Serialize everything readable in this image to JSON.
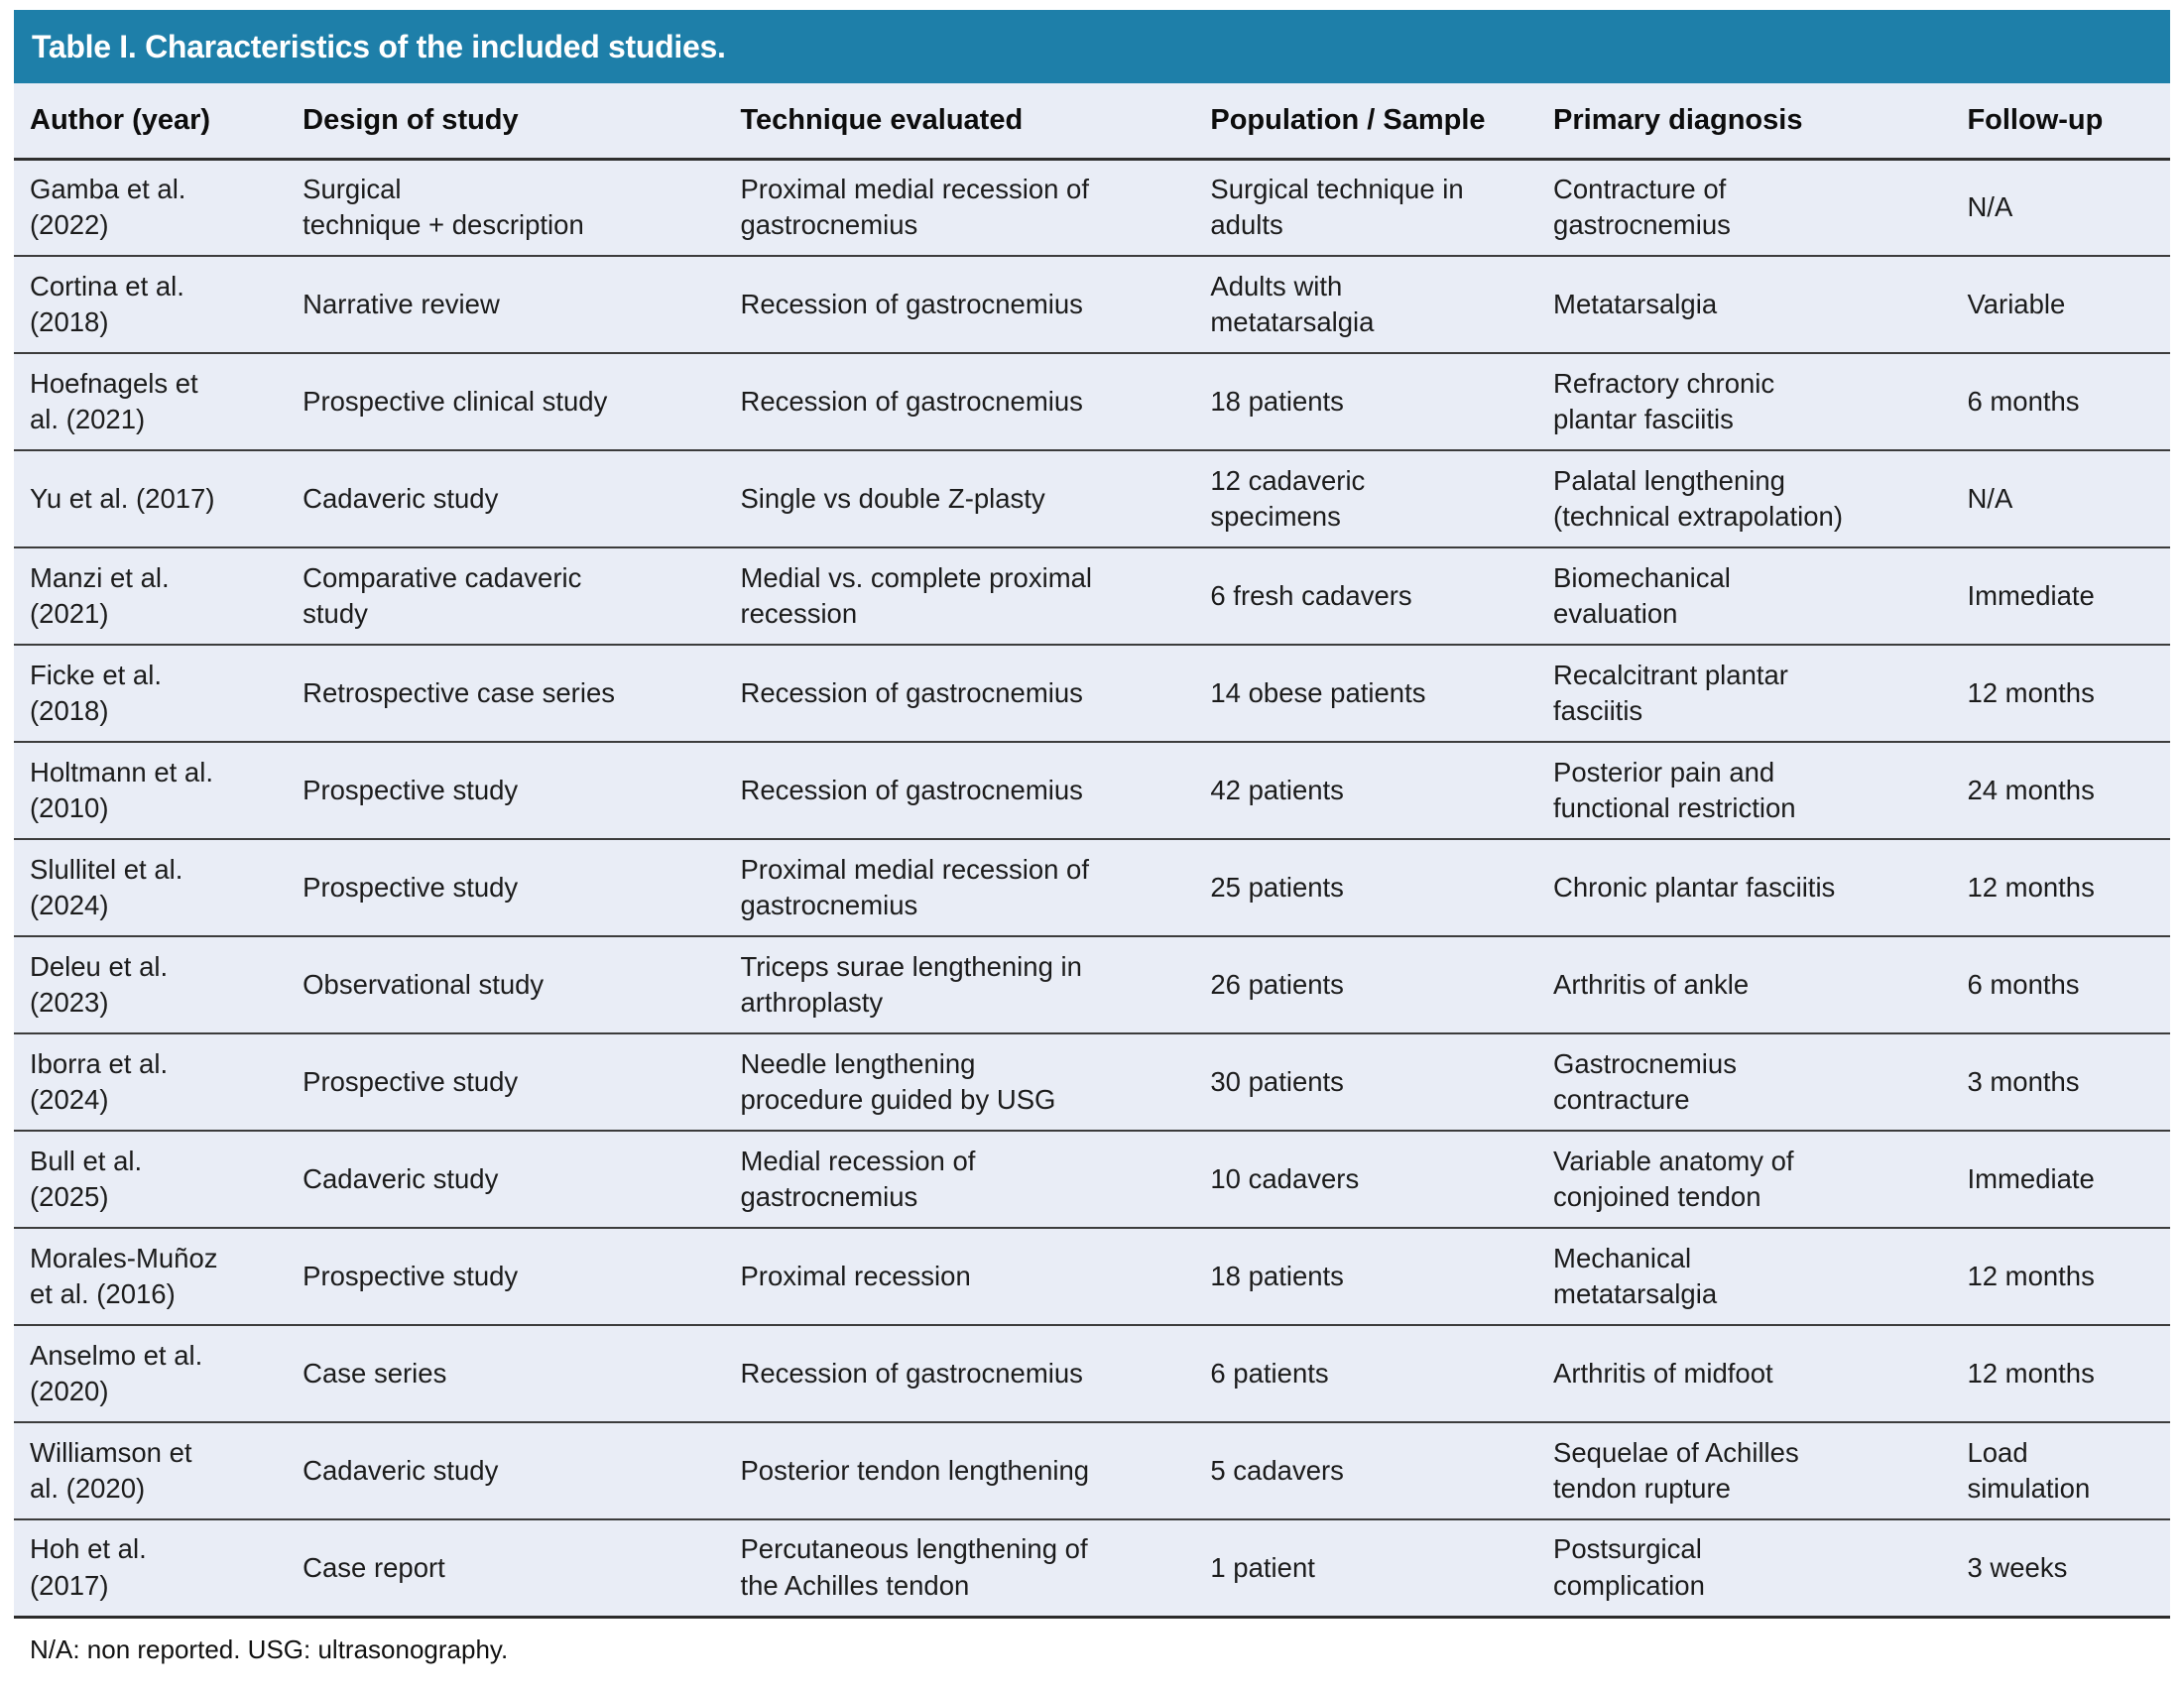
{
  "table": {
    "title": "Table I. Characteristics of the included studies.",
    "columns": [
      {
        "key": "author",
        "label": "Author (year)"
      },
      {
        "key": "design",
        "label": "Design of study"
      },
      {
        "key": "technique",
        "label": "Technique evaluated"
      },
      {
        "key": "population",
        "label": "Population / Sample"
      },
      {
        "key": "diagnosis",
        "label": "Primary diagnosis"
      },
      {
        "key": "followup",
        "label": "Follow-up"
      }
    ],
    "rows": [
      {
        "author": "Gamba et al.\n(2022)",
        "design": "Surgical\ntechnique + description",
        "technique": "Proximal medial recession of\ngastrocnemius",
        "population": "Surgical technique in\nadults",
        "diagnosis": "Contracture of\ngastrocnemius",
        "followup": "N/A"
      },
      {
        "author": "Cortina et al.\n(2018)",
        "design": "Narrative review",
        "technique": "Recession of gastrocnemius",
        "population": "Adults with\nmetatarsalgia",
        "diagnosis": "Metatarsalgia",
        "followup": "Variable"
      },
      {
        "author": "Hoefnagels et\nal. (2021)",
        "design": "Prospective clinical study",
        "technique": "Recession of gastrocnemius",
        "population": "18 patients",
        "diagnosis": "Refractory chronic\nplantar fasciitis",
        "followup": "6 months"
      },
      {
        "author": "Yu et al. (2017)",
        "design": "Cadaveric study",
        "technique": "Single vs double Z-plasty",
        "population": "12 cadaveric\nspecimens",
        "diagnosis": "Palatal lengthening\n(technical extrapolation)",
        "followup": "N/A"
      },
      {
        "author": "Manzi et al.\n(2021)",
        "design": "Comparative cadaveric\nstudy",
        "technique": "Medial vs. complete proximal\nrecession",
        "population": "6 fresh cadavers",
        "diagnosis": "Biomechanical\nevaluation",
        "followup": "Immediate"
      },
      {
        "author": "Ficke et al.\n(2018)",
        "design": "Retrospective case series",
        "technique": "Recession of gastrocnemius",
        "population": "14 obese patients",
        "diagnosis": "Recalcitrant plantar\nfasciitis",
        "followup": "12 months"
      },
      {
        "author": "Holtmann et al.\n(2010)",
        "design": "Prospective study",
        "technique": "Recession of gastrocnemius",
        "population": "42 patients",
        "diagnosis": "Posterior pain and\nfunctional restriction",
        "followup": "24 months"
      },
      {
        "author": "Slullitel et al.\n(2024)",
        "design": "Prospective study",
        "technique": "Proximal medial recession of\ngastrocnemius",
        "population": "25 patients",
        "diagnosis": "Chronic plantar fasciitis",
        "followup": "12 months"
      },
      {
        "author": "Deleu et al.\n(2023)",
        "design": "Observational study",
        "technique": "Triceps surae lengthening in\narthroplasty",
        "population": "26 patients",
        "diagnosis": "Arthritis of ankle",
        "followup": "6 months"
      },
      {
        "author": "Iborra et al.\n(2024)",
        "design": "Prospective study",
        "technique": "Needle lengthening\nprocedure guided by USG",
        "population": "30 patients",
        "diagnosis": "Gastrocnemius\ncontracture",
        "followup": "3 months"
      },
      {
        "author": "Bull et al.\n(2025)",
        "design": "Cadaveric study",
        "technique": "Medial recession of\ngastrocnemius",
        "population": "10 cadavers",
        "diagnosis": "Variable anatomy of\nconjoined tendon",
        "followup": "Immediate"
      },
      {
        "author": "Morales-Muñoz\net al. (2016)",
        "design": "Prospective study",
        "technique": "Proximal recession",
        "population": "18 patients",
        "diagnosis": "Mechanical\nmetatarsalgia",
        "followup": "12 months"
      },
      {
        "author": "Anselmo et al.\n(2020)",
        "design": "Case series",
        "technique": "Recession of gastrocnemius",
        "population": "6 patients",
        "diagnosis": "Arthritis of midfoot",
        "followup": "12 months"
      },
      {
        "author": "Williamson et\nal. (2020)",
        "design": "Cadaveric study",
        "technique": "Posterior tendon lengthening",
        "population": "5 cadavers",
        "diagnosis": "Sequelae of Achilles\ntendon rupture",
        "followup": "Load\nsimulation"
      },
      {
        "author": "Hoh et al.\n(2017)",
        "design": "Case report",
        "technique": "Percutaneous lengthening of\nthe Achilles tendon",
        "population": "1 patient",
        "diagnosis": "Postsurgical\ncomplication",
        "followup": "3 weeks"
      }
    ],
    "footnote": "N/A: non reported. USG: ultrasonography."
  },
  "colors": {
    "accent": "#1e7fa9",
    "row-bg": "#e9edf6",
    "title-text": "#ffffff",
    "body-text": "#1c1c1c",
    "border": "#3c3c3c"
  }
}
